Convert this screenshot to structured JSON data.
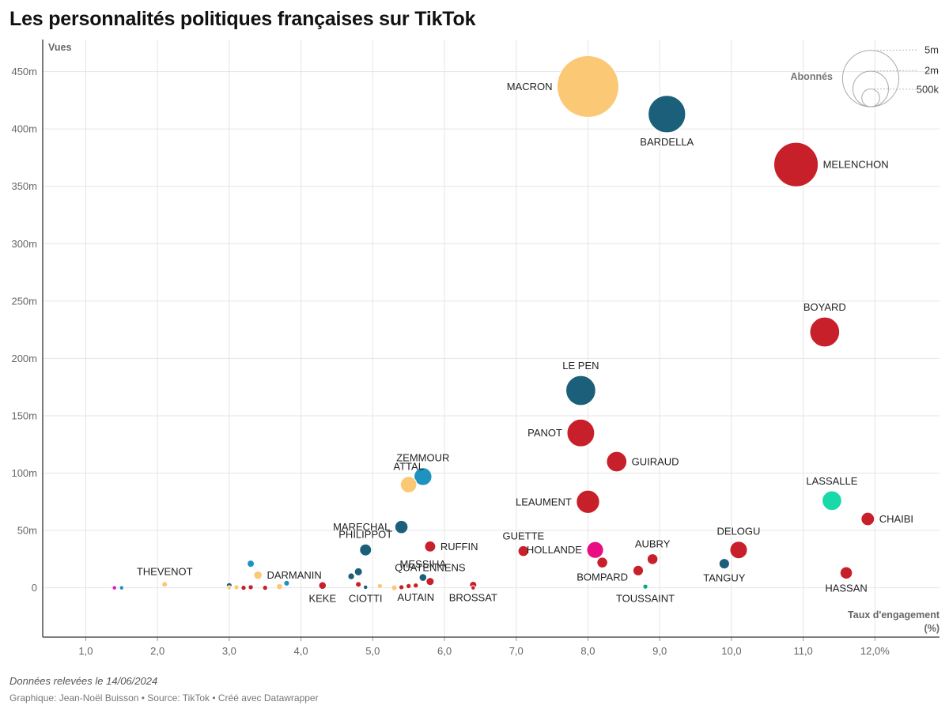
{
  "title": "Les personnalités politiques françaises sur TikTok",
  "note": "Données relevées le 14/06/2024",
  "credit": "Graphique: Jean-Noël Buisson • Source: TikTok • Créé avec Datawrapper",
  "colors": {
    "yellow": "#fbc975",
    "darkblue": "#1b5f7a",
    "red": "#c8202a",
    "lightblue": "#1f93c0",
    "teal": "#1ad9a8",
    "pink": "#ea0c82",
    "magenta": "#e11ac4",
    "green": "#12a38a",
    "grid": "#e5e5e5",
    "axis": "#333333"
  },
  "chart_data": {
    "type": "scatter",
    "bubble": true,
    "xlabel": "Taux d'engagement",
    "xlabel_unit": "(%)",
    "ylabel": "Vues",
    "xlim": [
      0.4,
      12.9
    ],
    "ylim": [
      -43,
      478
    ],
    "x_ticks": [
      1,
      2,
      3,
      4,
      5,
      6,
      7,
      8,
      9,
      10,
      11,
      12
    ],
    "x_tick_labels": [
      "1,0",
      "2,0",
      "3,0",
      "4,0",
      "5,0",
      "6,0",
      "7,0",
      "8,0",
      "9,0",
      "10,0",
      "11,0",
      "12,0%"
    ],
    "y_ticks": [
      0,
      50,
      100,
      150,
      200,
      250,
      300,
      350,
      400,
      450
    ],
    "y_tick_labels": [
      "0",
      "50m",
      "100m",
      "150m",
      "200m",
      "250m",
      "300m",
      "350m",
      "400m",
      "450m"
    ],
    "size_legend": {
      "title": "Abonnés",
      "entries": [
        {
          "label": "5m",
          "value": 5000000
        },
        {
          "label": "2m",
          "value": 2000000
        },
        {
          "label": "500k",
          "value": 500000
        }
      ]
    },
    "points": [
      {
        "name": "MACRON",
        "x": 8.0,
        "y": 437,
        "size": 6.0,
        "color": "yellow",
        "label_pos": "left"
      },
      {
        "name": "BARDELLA",
        "x": 9.1,
        "y": 413,
        "size": 2.2,
        "color": "darkblue",
        "label_pos": "below"
      },
      {
        "name": "MELENCHON",
        "x": 10.9,
        "y": 369,
        "size": 3.1,
        "color": "red",
        "label_pos": "right"
      },
      {
        "name": "BOYARD",
        "x": 11.3,
        "y": 223,
        "size": 1.4,
        "color": "red",
        "label_pos": "above"
      },
      {
        "name": "LE PEN",
        "x": 7.9,
        "y": 172,
        "size": 1.4,
        "color": "darkblue",
        "label_pos": "above"
      },
      {
        "name": "PANOT",
        "x": 7.9,
        "y": 135,
        "size": 1.2,
        "color": "red",
        "label_pos": "left"
      },
      {
        "name": "GUIRAUD",
        "x": 8.4,
        "y": 110,
        "size": 0.65,
        "color": "red",
        "label_pos": "right"
      },
      {
        "name": "ZEMMOUR",
        "x": 5.7,
        "y": 97,
        "size": 0.5,
        "color": "lightblue",
        "label_pos": "above"
      },
      {
        "name": "ATTAL",
        "x": 5.5,
        "y": 90,
        "size": 0.42,
        "color": "yellow",
        "label_pos": "above"
      },
      {
        "name": "LEAUMENT",
        "x": 8.0,
        "y": 75,
        "size": 0.85,
        "color": "red",
        "label_pos": "left"
      },
      {
        "name": "LASSALLE",
        "x": 11.4,
        "y": 76,
        "size": 0.6,
        "color": "teal",
        "label_pos": "above"
      },
      {
        "name": "CHAIBI",
        "x": 11.9,
        "y": 60,
        "size": 0.28,
        "color": "red",
        "label_pos": "right"
      },
      {
        "name": "MARECHAL",
        "x": 5.4,
        "y": 53,
        "size": 0.27,
        "color": "darkblue",
        "label_pos": "left"
      },
      {
        "name": "PHILIPPOT",
        "x": 4.9,
        "y": 33,
        "size": 0.22,
        "color": "darkblue",
        "label_pos": "above"
      },
      {
        "name": "RUFFIN",
        "x": 5.8,
        "y": 36,
        "size": 0.19,
        "color": "red",
        "label_pos": "right"
      },
      {
        "name": "GUETTE",
        "x": 7.1,
        "y": 32,
        "size": 0.18,
        "color": "red",
        "label_pos": "above"
      },
      {
        "name": "HOLLANDE",
        "x": 8.1,
        "y": 33,
        "size": 0.44,
        "color": "pink",
        "label_pos": "left"
      },
      {
        "name": "AUBRY",
        "x": 8.9,
        "y": 25,
        "size": 0.18,
        "color": "red",
        "label_pos": "above"
      },
      {
        "name": "DELOGU",
        "x": 10.1,
        "y": 33,
        "size": 0.48,
        "color": "red",
        "label_pos": "above"
      },
      {
        "name": "BOMPARD",
        "x": 8.2,
        "y": 22,
        "size": 0.18,
        "color": "red",
        "label_pos": "below"
      },
      {
        "name": "TANGUY",
        "x": 9.9,
        "y": 21,
        "size": 0.17,
        "color": "darkblue",
        "label_pos": "below"
      },
      {
        "name": "",
        "x": 8.7,
        "y": 15,
        "size": 0.17,
        "color": "red",
        "label_pos": "none"
      },
      {
        "name": "HASSAN",
        "x": 11.6,
        "y": 13,
        "size": 0.24,
        "color": "red",
        "label_pos": "below"
      },
      {
        "name": "TOUSSAINT",
        "x": 8.8,
        "y": 1,
        "size": 0.04,
        "color": "green",
        "label_pos": "below"
      },
      {
        "name": "MESSIHA",
        "x": 5.7,
        "y": 9,
        "size": 0.09,
        "color": "darkblue",
        "label_pos": "above"
      },
      {
        "name": "QUATENNENS",
        "x": 5.8,
        "y": 5.5,
        "size": 0.1,
        "color": "red",
        "label_pos": "above"
      },
      {
        "name": "AUTAIN",
        "x": 5.6,
        "y": 2,
        "size": 0.04,
        "color": "red",
        "label_pos": "below"
      },
      {
        "name": "BROSSAT",
        "x": 6.4,
        "y": 2.5,
        "size": 0.08,
        "color": "red",
        "label_pos": "below"
      },
      {
        "name": "",
        "x": 6.4,
        "y": 0,
        "size": 0.03,
        "color": "red",
        "label_pos": "none"
      },
      {
        "name": "THEVENOT",
        "x": 2.1,
        "y": 3,
        "size": 0.05,
        "color": "yellow",
        "label_pos": "above"
      },
      {
        "name": "DARMANIN",
        "x": 3.4,
        "y": 11,
        "size": 0.11,
        "color": "yellow",
        "label_pos": "right"
      },
      {
        "name": "",
        "x": 3.3,
        "y": 21,
        "size": 0.08,
        "color": "lightblue",
        "label_pos": "none"
      },
      {
        "name": "",
        "x": 3.8,
        "y": 4,
        "size": 0.05,
        "color": "lightblue",
        "label_pos": "none"
      },
      {
        "name": "",
        "x": 3.7,
        "y": 1,
        "size": 0.06,
        "color": "yellow",
        "label_pos": "none"
      },
      {
        "name": "KEKE",
        "x": 4.3,
        "y": 2,
        "size": 0.09,
        "color": "red",
        "label_pos": "below"
      },
      {
        "name": "",
        "x": 4.7,
        "y": 10,
        "size": 0.07,
        "color": "darkblue",
        "label_pos": "none"
      },
      {
        "name": "",
        "x": 4.8,
        "y": 14,
        "size": 0.1,
        "color": "darkblue",
        "label_pos": "none"
      },
      {
        "name": "",
        "x": 4.8,
        "y": 3,
        "size": 0.05,
        "color": "red",
        "label_pos": "none"
      },
      {
        "name": "CIOTTI",
        "x": 4.9,
        "y": 0.5,
        "size": 0.03,
        "color": "darkblue",
        "label_pos": "below"
      },
      {
        "name": "",
        "x": 5.1,
        "y": 1.5,
        "size": 0.04,
        "color": "yellow",
        "label_pos": "none"
      },
      {
        "name": "",
        "x": 5.3,
        "y": 0,
        "size": 0.05,
        "color": "yellow",
        "label_pos": "none"
      },
      {
        "name": "",
        "x": 5.4,
        "y": 0.5,
        "size": 0.04,
        "color": "red",
        "label_pos": "none"
      },
      {
        "name": "",
        "x": 5.5,
        "y": 1.5,
        "size": 0.04,
        "color": "red",
        "label_pos": "none"
      },
      {
        "name": "",
        "x": 3.0,
        "y": 2,
        "size": 0.05,
        "color": "darkblue",
        "label_pos": "none"
      },
      {
        "name": "",
        "x": 3.0,
        "y": 0,
        "size": 0.03,
        "color": "yellow",
        "label_pos": "none"
      },
      {
        "name": "",
        "x": 3.1,
        "y": 0.5,
        "size": 0.04,
        "color": "yellow",
        "label_pos": "none"
      },
      {
        "name": "",
        "x": 3.2,
        "y": 0,
        "size": 0.04,
        "color": "red",
        "label_pos": "none"
      },
      {
        "name": "",
        "x": 3.3,
        "y": 0.5,
        "size": 0.04,
        "color": "red",
        "label_pos": "none"
      },
      {
        "name": "",
        "x": 3.5,
        "y": 0,
        "size": 0.04,
        "color": "red",
        "label_pos": "none"
      },
      {
        "name": "",
        "x": 1.4,
        "y": 0,
        "size": 0.03,
        "color": "magenta",
        "label_pos": "none"
      },
      {
        "name": "",
        "x": 1.5,
        "y": 0,
        "size": 0.03,
        "color": "lightblue",
        "label_pos": "none"
      }
    ]
  }
}
